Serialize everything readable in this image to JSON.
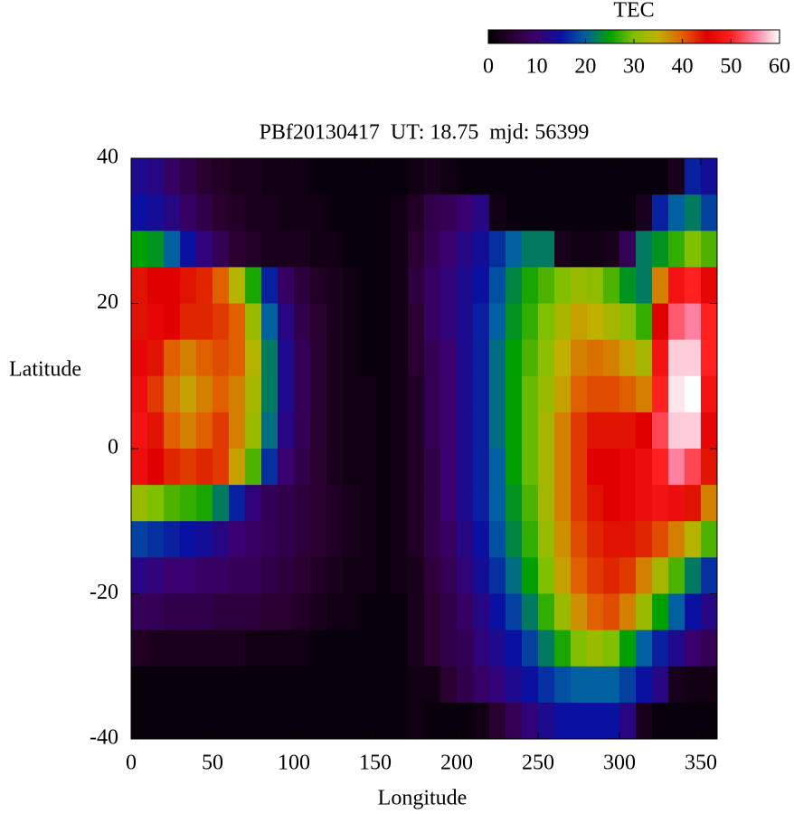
{
  "chart_data": {
    "type": "heatmap",
    "title": "PBf20130417  UT: 18.75  mjd: 56399",
    "xlabel": "Longitude",
    "ylabel": "Latitude",
    "colorbar_label": "TEC",
    "x": [
      5,
      15,
      25,
      35,
      45,
      55,
      65,
      75,
      85,
      95,
      105,
      115,
      125,
      135,
      145,
      155,
      165,
      175,
      185,
      195,
      205,
      215,
      225,
      235,
      245,
      255,
      265,
      275,
      285,
      295,
      305,
      315,
      325,
      335,
      345,
      355
    ],
    "y": [
      37.5,
      32.5,
      27.5,
      22.5,
      17.5,
      12.5,
      7.5,
      2.5,
      -2.5,
      -7.5,
      -12.5,
      -17.5,
      -22.5,
      -27.5,
      -32.5,
      -37.5
    ],
    "z": [
      [
        13,
        12,
        9,
        7,
        5,
        4,
        3,
        3,
        2,
        2,
        2,
        1,
        1,
        1,
        1,
        1,
        1,
        2,
        3,
        2,
        1,
        1,
        1,
        1,
        1,
        1,
        1,
        1,
        1,
        1,
        1,
        1,
        1,
        3,
        16,
        14
      ],
      [
        15,
        14,
        12,
        9,
        7,
        5,
        4,
        3,
        3,
        2,
        2,
        2,
        1,
        1,
        1,
        1,
        2,
        4,
        7,
        8,
        10,
        12,
        2,
        1,
        1,
        1,
        1,
        1,
        1,
        1,
        1,
        3,
        16,
        20,
        22,
        18
      ],
      [
        25,
        24,
        20,
        15,
        11,
        8,
        5,
        4,
        3,
        3,
        3,
        2,
        2,
        1,
        1,
        1,
        2,
        5,
        8,
        10,
        12,
        14,
        17,
        20,
        22,
        22,
        3,
        2,
        2,
        3,
        8,
        22,
        24,
        27,
        30,
        28
      ],
      [
        44,
        45,
        45,
        44,
        43,
        40,
        34,
        26,
        16,
        9,
        6,
        4,
        3,
        2,
        1,
        1,
        2,
        6,
        9,
        11,
        13,
        15,
        19,
        23,
        26,
        28,
        30,
        32,
        31,
        28,
        24,
        22,
        38,
        48,
        50,
        46
      ],
      [
        44,
        46,
        45,
        43,
        43,
        42,
        40,
        32,
        20,
        12,
        7,
        5,
        3,
        2,
        1,
        1,
        2,
        5,
        9,
        11,
        13,
        16,
        20,
        24,
        27,
        30,
        33,
        36,
        35,
        33,
        31,
        27,
        45,
        53,
        55,
        50
      ],
      [
        46,
        44,
        40,
        38,
        40,
        41,
        40,
        34,
        22,
        13,
        8,
        5,
        3,
        2,
        1,
        1,
        2,
        5,
        8,
        10,
        13,
        16,
        21,
        25,
        28,
        31,
        35,
        38,
        39,
        38,
        36,
        33,
        48,
        58,
        58,
        50
      ],
      [
        47,
        42,
        38,
        36,
        38,
        40,
        38,
        33,
        22,
        13,
        8,
        5,
        3,
        2,
        2,
        1,
        2,
        4,
        8,
        10,
        13,
        16,
        21,
        25,
        29,
        32,
        36,
        40,
        41,
        41,
        40,
        38,
        50,
        59,
        60,
        48
      ],
      [
        48,
        44,
        40,
        38,
        40,
        42,
        38,
        32,
        21,
        12,
        8,
        5,
        3,
        2,
        2,
        1,
        2,
        4,
        8,
        10,
        13,
        16,
        21,
        25,
        29,
        33,
        38,
        42,
        44,
        44,
        44,
        45,
        52,
        58,
        58,
        46
      ],
      [
        47,
        45,
        43,
        42,
        43,
        42,
        36,
        28,
        17,
        10,
        7,
        5,
        3,
        2,
        2,
        1,
        2,
        4,
        7,
        10,
        13,
        16,
        20,
        25,
        29,
        33,
        38,
        42,
        45,
        45,
        46,
        47,
        50,
        55,
        52,
        44
      ],
      [
        32,
        30,
        28,
        27,
        26,
        22,
        16,
        11,
        8,
        7,
        6,
        5,
        4,
        3,
        2,
        1,
        2,
        4,
        7,
        10,
        13,
        16,
        20,
        24,
        28,
        33,
        38,
        42,
        44,
        45,
        46,
        47,
        48,
        47,
        44,
        38
      ],
      [
        18,
        17,
        16,
        15,
        14,
        12,
        10,
        9,
        8,
        7,
        6,
        5,
        4,
        3,
        2,
        1,
        2,
        4,
        7,
        9,
        12,
        15,
        19,
        23,
        27,
        32,
        37,
        41,
        43,
        44,
        44,
        43,
        41,
        38,
        34,
        28
      ],
      [
        12,
        11,
        10,
        10,
        9,
        9,
        8,
        8,
        7,
        6,
        5,
        4,
        3,
        2,
        2,
        1,
        2,
        3,
        6,
        8,
        11,
        14,
        17,
        21,
        25,
        30,
        36,
        40,
        42,
        43,
        42,
        38,
        33,
        28,
        22,
        17
      ],
      [
        8,
        8,
        7,
        7,
        7,
        6,
        6,
        6,
        5,
        5,
        4,
        3,
        2,
        2,
        1,
        1,
        1,
        3,
        5,
        7,
        9,
        12,
        15,
        18,
        22,
        27,
        32,
        37,
        40,
        41,
        38,
        32,
        25,
        20,
        15,
        12
      ],
      [
        4,
        3,
        3,
        3,
        3,
        3,
        3,
        2,
        2,
        2,
        2,
        1,
        1,
        1,
        1,
        1,
        1,
        3,
        5,
        7,
        8,
        11,
        13,
        15,
        18,
        22,
        26,
        30,
        32,
        30,
        25,
        20,
        16,
        13,
        10,
        8
      ],
      [
        1,
        1,
        1,
        1,
        1,
        1,
        1,
        1,
        1,
        1,
        1,
        1,
        1,
        1,
        1,
        1,
        1,
        2,
        2,
        5,
        7,
        9,
        11,
        13,
        15,
        17,
        19,
        20,
        20,
        20,
        18,
        15,
        12,
        3,
        2,
        2
      ],
      [
        1,
        1,
        1,
        1,
        1,
        1,
        1,
        1,
        1,
        1,
        1,
        1,
        1,
        1,
        1,
        1,
        1,
        2,
        1,
        1,
        1,
        2,
        5,
        8,
        11,
        13,
        15,
        15,
        15,
        15,
        12,
        3,
        1,
        1,
        1,
        1
      ]
    ],
    "xlim": [
      0,
      360
    ],
    "xticks": [
      0,
      50,
      100,
      150,
      200,
      250,
      300,
      350
    ],
    "ylim": [
      -40,
      40
    ],
    "yticks": [
      -40,
      -20,
      0,
      20,
      40
    ],
    "clim": [
      0,
      60
    ],
    "cticks": [
      0,
      10,
      20,
      30,
      40,
      50,
      60
    ],
    "colormap": [
      "#000000",
      "#2a0030",
      "#3a0070",
      "#0a10a0",
      "#0060a0",
      "#00a000",
      "#80c000",
      "#c0b000",
      "#e06000",
      "#e00000",
      "#ff2020",
      "#ff80a0",
      "#ffffff"
    ]
  }
}
